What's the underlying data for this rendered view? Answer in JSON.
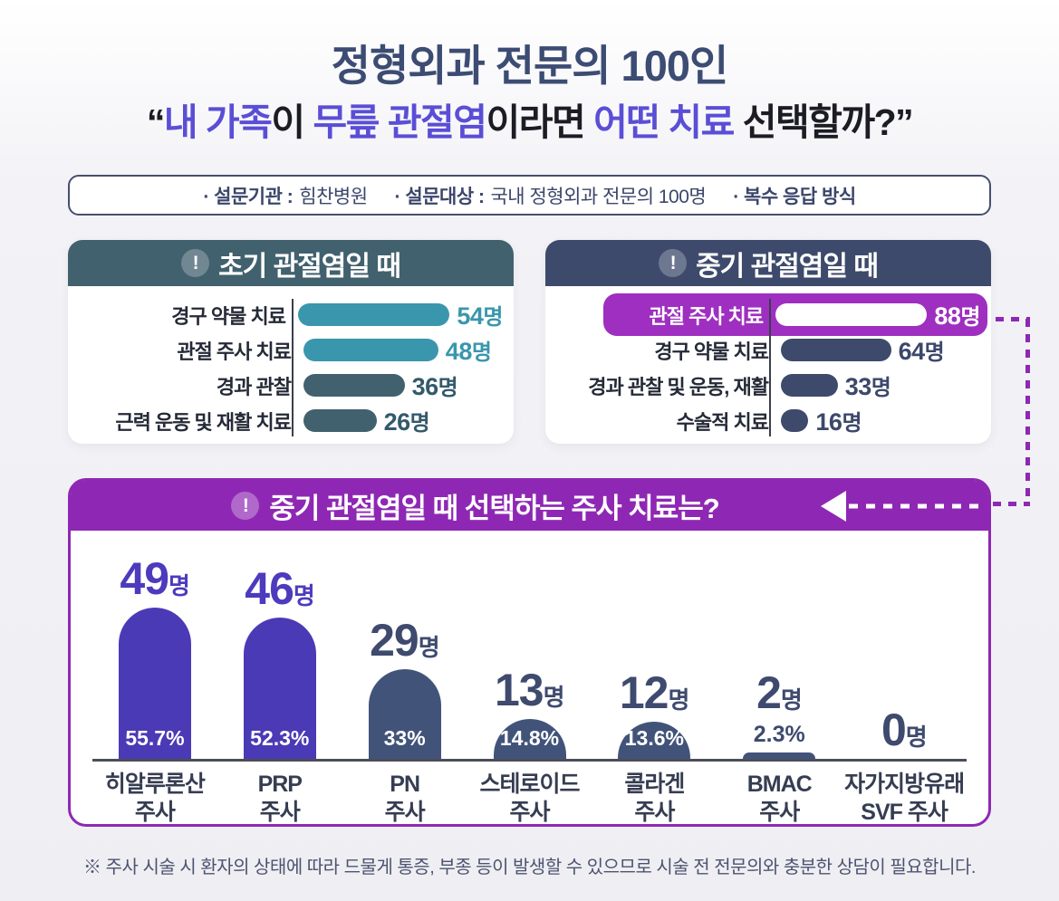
{
  "title": {
    "line1": "정형외과 전문의 100인",
    "line2_parts": [
      {
        "text": "“",
        "c": "dark"
      },
      {
        "text": "내 가족",
        "c": "accent"
      },
      {
        "text": "이 ",
        "c": "dark"
      },
      {
        "text": "무릎 관절염",
        "c": "accent"
      },
      {
        "text": "이라면 ",
        "c": "dark"
      },
      {
        "text": "어떤 치료",
        "c": "accent"
      },
      {
        "text": " 선택할까?”",
        "c": "dark"
      }
    ]
  },
  "survey_info": {
    "institution_label": "· 설문기관 :",
    "institution_value": "힘찬병원",
    "target_label": "· 설문대상 :",
    "target_value": "국내 정형외과 전문의 100명",
    "method_label": "· 복수 응답 방식"
  },
  "icons": {
    "exclamation": "!"
  },
  "colors": {
    "title_navy": "#3c4c73",
    "accent_purple": "#5a4ed6",
    "teal_header": "#42616e",
    "teal_bar": "#3a96ac",
    "navy_header": "#3e4a6b",
    "highlight_purple": "#9e2fc0",
    "bottom_header_purple": "#8e28b4",
    "bar_purple": "#4b3ab5",
    "bar_navy": "#42537a"
  },
  "chart_data": [
    {
      "type": "bar",
      "orientation": "horizontal",
      "title": "초기 관절염일 때",
      "categories": [
        "경구 약물 치료",
        "관절 주사 치료",
        "경과 관찰",
        "근력 운동 및 재활 치료"
      ],
      "values": [
        54,
        48,
        36,
        26
      ],
      "unit": "명",
      "bar_colors": [
        "#3a96ac",
        "#3a96ac",
        "#42616e",
        "#42616e"
      ]
    },
    {
      "type": "bar",
      "orientation": "horizontal",
      "title": "중기 관절염일 때",
      "categories": [
        "관절 주사 치료",
        "경구 약물 치료",
        "경과 관찰 및 운동, 재활",
        "수술적 치료"
      ],
      "values": [
        88,
        64,
        33,
        16
      ],
      "unit": "명",
      "highlighted_category": "관절 주사 치료",
      "bar_colors": [
        "#ffffff",
        "#3e4a6b",
        "#3e4a6b",
        "#3e4a6b"
      ]
    },
    {
      "type": "bar",
      "orientation": "vertical",
      "title": "중기 관절염일 때 선택하는 주사 치료는?",
      "categories": [
        [
          "히알루론산",
          "주사"
        ],
        [
          "PRP",
          "주사"
        ],
        [
          "PN",
          "주사"
        ],
        [
          "스테로이드",
          "주사"
        ],
        [
          "콜라겐",
          "주사"
        ],
        [
          "BMAC",
          "주사"
        ],
        [
          "자가지방유래",
          "SVF 주사"
        ]
      ],
      "values": [
        49,
        46,
        29,
        13,
        12,
        2,
        0
      ],
      "percents": [
        "55.7%",
        "52.3%",
        "33%",
        "14.8%",
        "13.6%",
        "2.3%",
        ""
      ],
      "unit": "명",
      "bar_colors": [
        "#4b3ab5",
        "#4b3ab5",
        "#42537a",
        "#42537a",
        "#42537a",
        "#42537a",
        "#42537a"
      ]
    }
  ],
  "footer": {
    "note": "※ 주사 시술 시 환자의 상태에 따라 드물게 통증, 부종 등이 발생할 수 있으므로 시술 전 전문의와 충분한 상담이 필요합니다."
  }
}
